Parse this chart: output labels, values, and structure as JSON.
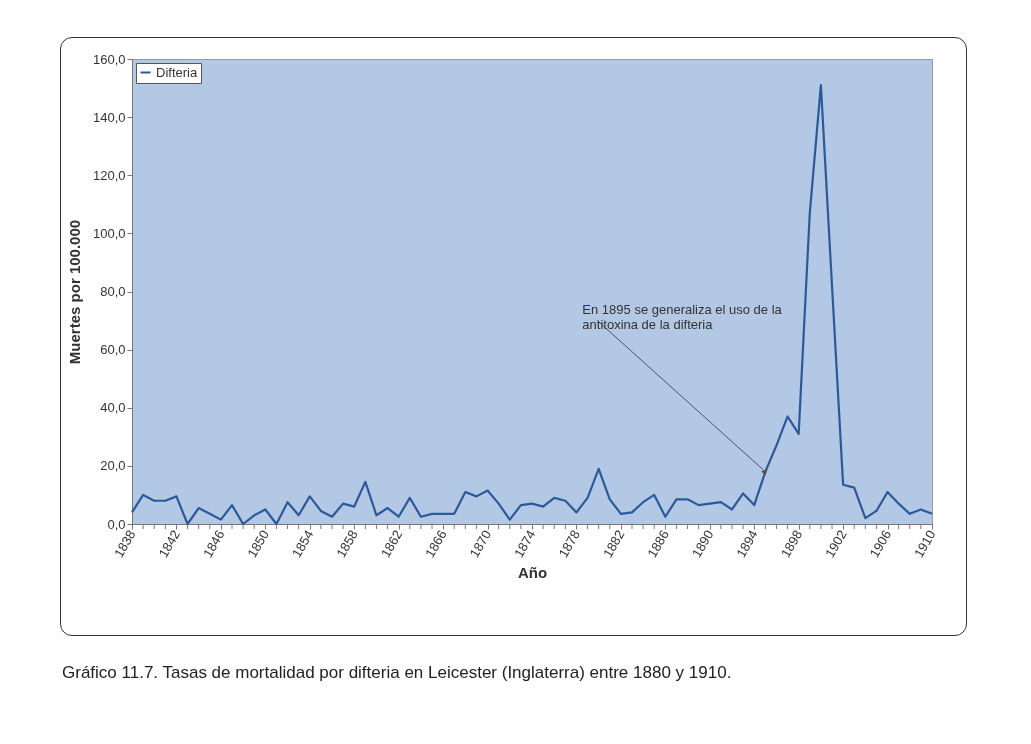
{
  "chart_data": {
    "type": "line",
    "xlabel": "Año",
    "ylabel": "Muertes por 100.000",
    "x": [
      1838,
      1839,
      1840,
      1841,
      1842,
      1843,
      1844,
      1845,
      1846,
      1847,
      1848,
      1849,
      1850,
      1851,
      1852,
      1853,
      1854,
      1855,
      1856,
      1857,
      1858,
      1859,
      1860,
      1861,
      1862,
      1863,
      1864,
      1865,
      1866,
      1867,
      1868,
      1869,
      1870,
      1871,
      1872,
      1873,
      1874,
      1875,
      1876,
      1877,
      1878,
      1879,
      1880,
      1881,
      1882,
      1883,
      1884,
      1885,
      1886,
      1887,
      1888,
      1889,
      1890,
      1891,
      1892,
      1893,
      1894,
      1895,
      1896,
      1897,
      1898,
      1899,
      1900,
      1901,
      1902,
      1903,
      1904,
      1905,
      1906,
      1907,
      1908,
      1909,
      1910
    ],
    "series": [
      {
        "name": "Difteria",
        "color": "#2b5a9a",
        "values": [
          4,
          10,
          8,
          8,
          9.5,
          0,
          5.5,
          3.5,
          1.5,
          6.5,
          0,
          3,
          5,
          0,
          7.5,
          3,
          9.5,
          4.5,
          2.5,
          7,
          6,
          14.5,
          3,
          5.5,
          2.5,
          9,
          2.5,
          3.5,
          3.5,
          3.5,
          11,
          9.5,
          11.5,
          7,
          1.5,
          6.5,
          7,
          6,
          9,
          8,
          4,
          9,
          19,
          8.5,
          3.5,
          4,
          7.5,
          10,
          2.5,
          8.5,
          8.5,
          6.5,
          7,
          7.5,
          5,
          10.5,
          6.5,
          18,
          27,
          37,
          31,
          107,
          151,
          82,
          13.5,
          12.5,
          2,
          4.5,
          11,
          7,
          3.5,
          5,
          3.5
        ]
      }
    ],
    "xlim": [
      1838,
      1910
    ],
    "xticks": [
      1838,
      {
        "value": 1839,
        "label": null
      },
      {
        "value": 1840,
        "label": null
      },
      {
        "value": 1841,
        "label": null
      },
      1842,
      {
        "value": 1843,
        "label": null
      },
      {
        "value": 1844,
        "label": null
      },
      {
        "value": 1845,
        "label": null
      },
      1846,
      {
        "value": 1847,
        "label": null
      },
      {
        "value": 1848,
        "label": null
      },
      {
        "value": 1849,
        "label": null
      },
      1850,
      {
        "value": 1851,
        "label": null
      },
      {
        "value": 1852,
        "label": null
      },
      {
        "value": 1853,
        "label": null
      },
      1854,
      {
        "value": 1855,
        "label": null
      },
      {
        "value": 1856,
        "label": null
      },
      {
        "value": 1857,
        "label": null
      },
      1858,
      {
        "value": 1859,
        "label": null
      },
      {
        "value": 1860,
        "label": null
      },
      {
        "value": 1861,
        "label": null
      },
      1862,
      {
        "value": 1863,
        "label": null
      },
      {
        "value": 1864,
        "label": null
      },
      {
        "value": 1865,
        "label": null
      },
      1866,
      {
        "value": 1867,
        "label": null
      },
      {
        "value": 1868,
        "label": null
      },
      {
        "value": 1869,
        "label": null
      },
      1870,
      {
        "value": 1871,
        "label": null
      },
      {
        "value": 1872,
        "label": null
      },
      {
        "value": 1873,
        "label": null
      },
      1874,
      {
        "value": 1875,
        "label": null
      },
      {
        "value": 1876,
        "label": null
      },
      {
        "value": 1877,
        "label": null
      },
      1878,
      {
        "value": 1879,
        "label": null
      },
      {
        "value": 1880,
        "label": null
      },
      {
        "value": 1881,
        "label": null
      },
      1882,
      {
        "value": 1883,
        "label": null
      },
      {
        "value": 1884,
        "label": null
      },
      {
        "value": 1885,
        "label": null
      },
      1886,
      {
        "value": 1887,
        "label": null
      },
      {
        "value": 1888,
        "label": null
      },
      {
        "value": 1889,
        "label": null
      },
      1890,
      {
        "value": 1891,
        "label": null
      },
      {
        "value": 1892,
        "label": null
      },
      {
        "value": 1893,
        "label": null
      },
      1894,
      {
        "value": 1895,
        "label": null
      },
      {
        "value": 1896,
        "label": null
      },
      {
        "value": 1897,
        "label": null
      },
      1898,
      {
        "value": 1899,
        "label": null
      },
      {
        "value": 1900,
        "label": null
      },
      {
        "value": 1901,
        "label": null
      },
      1902,
      {
        "value": 1903,
        "label": null
      },
      {
        "value": 1904,
        "label": null
      },
      {
        "value": 1905,
        "label": null
      },
      1906,
      {
        "value": 1907,
        "label": null
      },
      {
        "value": 1908,
        "label": null
      },
      {
        "value": 1909,
        "label": null
      },
      1910
    ],
    "ylim": [
      0,
      160
    ],
    "yticks": [
      {
        "value": 0,
        "label": "0,0"
      },
      {
        "value": 20,
        "label": "20,0"
      },
      {
        "value": 40,
        "label": "40,0"
      },
      {
        "value": 60,
        "label": "60,0"
      },
      {
        "value": 80,
        "label": "80,0"
      },
      {
        "value": 100,
        "label": "100,0"
      },
      {
        "value": 120,
        "label": "120,0"
      },
      {
        "value": 140,
        "label": "140,0"
      },
      {
        "value": 160,
        "label": "160,0"
      }
    ],
    "grid": false,
    "legend": "top left",
    "marker": "none",
    "line_style": "solid",
    "annotations": [
      {
        "text": "En 1895 se generaliza el uso de la\nantitoxina de la difteria",
        "x": 1895,
        "y": 18
      },
      "Gráfico 11.7. Tasas de mortalidad por difteria en Leicester (Inglaterra) entre 1880 y 1910."
    ]
  }
}
